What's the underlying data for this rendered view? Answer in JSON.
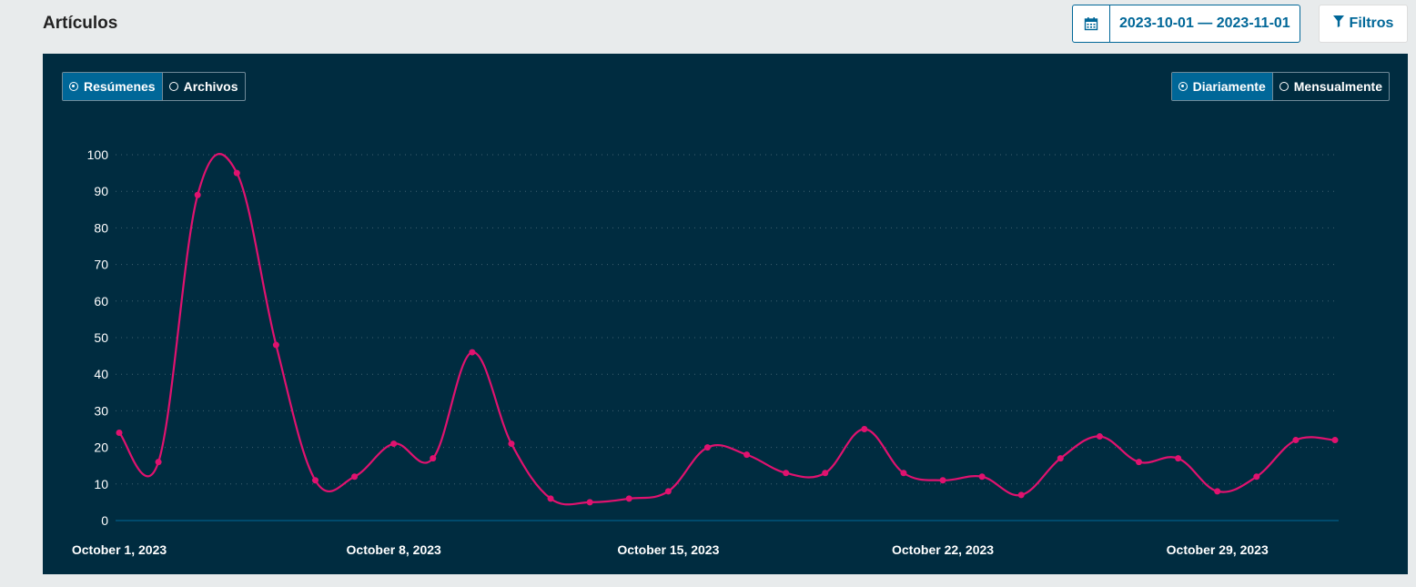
{
  "header": {
    "title": "Artículos",
    "date_range": "2023-10-01 — 2023-11-01",
    "filters_label": "Filtros",
    "calendar_icon": "calendar-icon",
    "filter_icon": "filter-icon"
  },
  "toggles": {
    "type": [
      {
        "label": "Resúmenes",
        "selected": true
      },
      {
        "label": "Archivos",
        "selected": false
      }
    ],
    "interval": [
      {
        "label": "Diariamente",
        "selected": true
      },
      {
        "label": "Mensualmente",
        "selected": false
      }
    ]
  },
  "colors": {
    "panel_bg": "#002c40",
    "accent": "#006798",
    "line": "#e0126f",
    "axis_text": "#ffffff"
  },
  "chart_data": {
    "type": "line",
    "title": "",
    "xlabel": "",
    "ylabel": "",
    "ylim": [
      0,
      100
    ],
    "y_ticks": [
      0,
      10,
      20,
      30,
      40,
      50,
      60,
      70,
      80,
      90,
      100
    ],
    "x_tick_labels": [
      "October  1, 2023",
      "October  8, 2023",
      "October 15, 2023",
      "October 22, 2023",
      "October 29, 2023"
    ],
    "x": [
      "2023-10-01",
      "2023-10-02",
      "2023-10-03",
      "2023-10-04",
      "2023-10-05",
      "2023-10-06",
      "2023-10-07",
      "2023-10-08",
      "2023-10-09",
      "2023-10-10",
      "2023-10-11",
      "2023-10-12",
      "2023-10-13",
      "2023-10-14",
      "2023-10-15",
      "2023-10-16",
      "2023-10-17",
      "2023-10-18",
      "2023-10-19",
      "2023-10-20",
      "2023-10-21",
      "2023-10-22",
      "2023-10-23",
      "2023-10-24",
      "2023-10-25",
      "2023-10-26",
      "2023-10-27",
      "2023-10-28",
      "2023-10-29",
      "2023-10-30",
      "2023-10-31",
      "2023-11-01"
    ],
    "series": [
      {
        "values": [
          24,
          16,
          89,
          95,
          48,
          11,
          12,
          21,
          17,
          46,
          21,
          6,
          5,
          6,
          8,
          20,
          18,
          13,
          13,
          25,
          13,
          11,
          12,
          7,
          17,
          23,
          16,
          17,
          8,
          12,
          22,
          22
        ]
      }
    ],
    "grid": true,
    "legend": "none"
  }
}
